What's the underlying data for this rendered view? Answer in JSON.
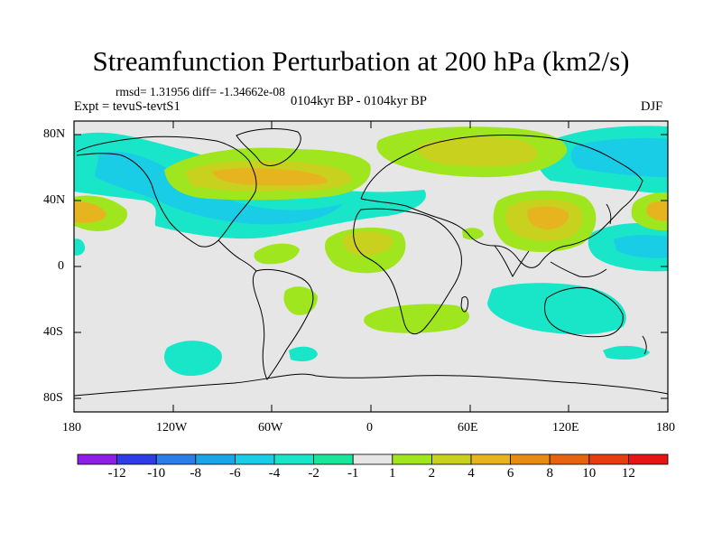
{
  "map": {
    "title": "Streamfunction Perturbation at 200 hPa (km2/s)",
    "stats": "rmsd= 1.31956 diff= -1.34662e-08",
    "experiment": "Expt = tevuS-tevtS1",
    "period": "0104kyr BP - 0104kyr BP",
    "season": "DJF",
    "lat_ticks": [
      "80N",
      "40N",
      "0",
      "40S",
      "80S"
    ],
    "lon_ticks": [
      "180",
      "120W",
      "60W",
      "0",
      "60E",
      "120E",
      "180"
    ]
  },
  "colorbar": {
    "labels": [
      "-12",
      "-10",
      "-8",
      "-6",
      "-4",
      "-2",
      "-1",
      "1",
      "2",
      "4",
      "6",
      "8",
      "10",
      "12"
    ],
    "colors": [
      "#8c1ee6",
      "#2d3ce6",
      "#2d7de6",
      "#19a5e6",
      "#19cde6",
      "#19e6c8",
      "#19e69b",
      "#e6e6e6",
      "#a0e61e",
      "#c8d21e",
      "#e6b41e",
      "#e68c14",
      "#e6640f",
      "#e63c0f",
      "#e61414"
    ]
  }
}
